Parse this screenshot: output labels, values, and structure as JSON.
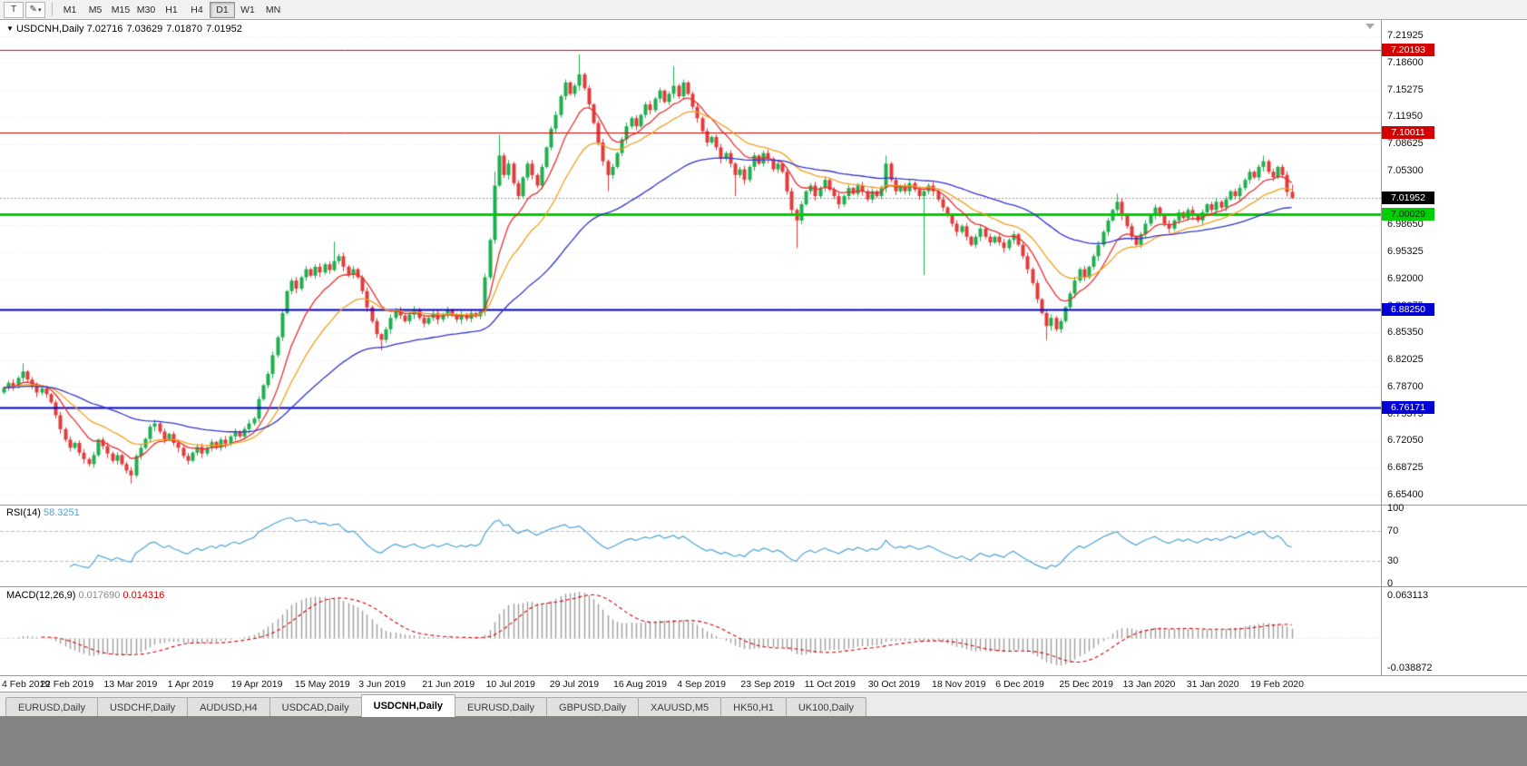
{
  "toolbar": {
    "template_button_label": "T",
    "draw_button_icon": "✎",
    "draw_button_chevron": "▾",
    "timeframes": [
      "M1",
      "M5",
      "M15",
      "M30",
      "H1",
      "H4",
      "D1",
      "W1",
      "MN"
    ],
    "active_timeframe": "D1"
  },
  "info_bar": {
    "collapse_icon": "▼",
    "symbol": "USDCNH,Daily",
    "open": "7.02716",
    "high": "7.03629",
    "low": "7.01870",
    "close": "7.01952"
  },
  "tabs": {
    "items": [
      "EURUSD,Daily",
      "USDCHF,Daily",
      "AUDUSD,H4",
      "USDCAD,Daily",
      "USDCNH,Daily",
      "EURUSD,Daily",
      "GBPUSD,Daily",
      "XAUUSD,M5",
      "HK50,H1",
      "UK100,Daily"
    ],
    "active": "USDCNH,Daily",
    "active_index": 4
  },
  "chart_data": {
    "type": "candlestick",
    "symbol": "USDCNH",
    "timeframe": "Daily",
    "x_axis": {
      "labels": [
        "4 Feb 2019",
        "22 Feb 2019",
        "13 Mar 2019",
        "1 Apr 2019",
        "19 Apr 2019",
        "15 May 2019",
        "3 Jun 2019",
        "21 Jun 2019",
        "10 Jul 2019",
        "29 Jul 2019",
        "16 Aug 2019",
        "4 Sep 2019",
        "23 Sep 2019",
        "11 Oct 2019",
        "30 Oct 2019",
        "18 Nov 2019",
        "6 Dec 2019",
        "25 Dec 2019",
        "13 Jan 2020",
        "31 Jan 2020",
        "19 Feb 2020"
      ],
      "label_every_n_candles": 13.5
    },
    "y_axis": {
      "ticks": [
        "7.21925",
        "7.18600",
        "7.15275",
        "7.11950",
        "7.08625",
        "7.05300",
        "7.01975",
        "6.98650",
        "6.95325",
        "6.92000",
        "6.88675",
        "6.85350",
        "6.82025",
        "6.78700",
        "6.75375",
        "6.72050",
        "6.68725",
        "6.65400"
      ],
      "top_price": 7.239,
      "bottom_price": 6.642
    },
    "candles": {
      "up_color": "#1fae4e",
      "down_color": "#e23b3b",
      "first_open": 6.78,
      "closes": [
        6.786,
        6.792,
        6.788,
        6.798,
        6.806,
        6.796,
        6.788,
        6.78,
        6.785,
        6.778,
        6.768,
        6.752,
        6.735,
        6.722,
        6.712,
        6.718,
        6.706,
        6.698,
        6.692,
        6.703,
        6.722,
        6.714,
        6.705,
        6.696,
        6.703,
        6.692,
        6.684,
        6.678,
        6.702,
        6.712,
        6.723,
        6.738,
        6.742,
        6.732,
        6.722,
        6.729,
        6.718,
        6.712,
        6.702,
        6.696,
        6.706,
        6.713,
        6.705,
        6.712,
        6.719,
        6.712,
        6.722,
        6.717,
        6.726,
        6.732,
        6.726,
        6.735,
        6.742,
        6.748,
        6.772,
        6.789,
        6.803,
        6.826,
        6.848,
        6.878,
        6.905,
        6.918,
        6.908,
        6.922,
        6.932,
        6.924,
        6.935,
        6.928,
        6.938,
        6.931,
        6.942,
        6.948,
        6.935,
        6.925,
        6.932,
        6.922,
        6.905,
        6.885,
        6.868,
        6.852,
        6.845,
        6.858,
        6.872,
        6.882,
        6.875,
        6.868,
        6.876,
        6.882,
        6.872,
        6.865,
        6.872,
        6.878,
        6.87,
        6.876,
        6.882,
        6.875,
        6.87,
        6.876,
        6.871,
        6.878,
        6.874,
        6.88,
        6.922,
        6.968,
        7.035,
        7.072,
        7.048,
        7.062,
        7.038,
        7.022,
        7.045,
        7.062,
        7.048,
        7.035,
        7.058,
        7.082,
        7.105,
        7.122,
        7.145,
        7.162,
        7.148,
        7.158,
        7.172,
        7.155,
        7.135,
        7.112,
        7.088,
        7.065,
        7.048,
        7.058,
        7.075,
        7.092,
        7.108,
        7.118,
        7.108,
        7.122,
        7.135,
        7.128,
        7.142,
        7.152,
        7.138,
        7.148,
        7.158,
        7.145,
        7.162,
        7.148,
        7.132,
        7.118,
        7.102,
        7.088,
        7.095,
        7.082,
        7.068,
        7.075,
        7.062,
        7.048,
        7.055,
        7.042,
        7.058,
        7.072,
        7.062,
        7.075,
        7.068,
        7.055,
        7.062,
        7.052,
        7.028,
        7.005,
        6.992,
        7.012,
        7.028,
        7.035,
        7.022,
        7.032,
        7.042,
        7.03,
        7.022,
        7.012,
        7.022,
        7.032,
        7.025,
        7.035,
        7.028,
        7.018,
        7.028,
        7.022,
        7.032,
        7.062,
        7.042,
        7.028,
        7.035,
        7.028,
        7.038,
        7.03,
        7.022,
        7.028,
        7.035,
        7.028,
        7.018,
        7.008,
        6.998,
        6.988,
        6.978,
        6.985,
        6.972,
        6.962,
        6.972,
        6.982,
        6.972,
        6.965,
        6.972,
        6.965,
        6.958,
        6.968,
        6.975,
        6.962,
        6.948,
        6.932,
        6.915,
        6.895,
        6.878,
        6.862,
        6.872,
        6.858,
        6.868,
        6.885,
        6.902,
        6.918,
        6.932,
        6.922,
        6.935,
        6.948,
        6.962,
        6.978,
        6.992,
        7.005,
        7.015,
        6.998,
        6.985,
        6.972,
        6.962,
        6.975,
        6.988,
        6.998,
        7.008,
        6.998,
        6.988,
        6.982,
        6.992,
        7.002,
        6.995,
        7.005,
        6.998,
        6.992,
        7.002,
        7.012,
        7.005,
        7.015,
        7.008,
        7.018,
        7.028,
        7.022,
        7.032,
        7.042,
        7.052,
        7.045,
        7.058,
        7.065,
        7.052,
        7.045,
        7.058,
        7.048,
        7.02716,
        7.01952
      ],
      "wick_overrides": {
        "4": [
          6.816,
          null
        ],
        "27": [
          null,
          6.668
        ],
        "70": [
          6.966,
          null
        ],
        "80": [
          null,
          6.832
        ],
        "104": [
          7.052,
          null
        ],
        "105": [
          7.098,
          null
        ],
        "122": [
          7.1965,
          null
        ],
        "128": [
          null,
          7.028
        ],
        "142": [
          7.182,
          null
        ],
        "155": [
          null,
          7.022
        ],
        "168": [
          null,
          6.958
        ],
        "187": [
          7.072,
          null
        ],
        "195": [
          null,
          6.925
        ],
        "221": [
          null,
          6.845
        ],
        "236": [
          7.025,
          null
        ],
        "267": [
          7.072,
          null
        ],
        "273": [
          7.03629,
          7.0187
        ]
      }
    },
    "moving_averages": [
      {
        "period": 10,
        "color": "#e62e2e"
      },
      {
        "period": 21,
        "color": "#f0a01e"
      },
      {
        "period": 55,
        "color": "#3333cc"
      }
    ],
    "levels": [
      {
        "price": 7.20193,
        "label": "7.20193",
        "color": "#d40000",
        "width": 1,
        "badge_text_color": "#ffffff"
      },
      {
        "price": 7.10011,
        "label": "7.10011",
        "color": "#d40000",
        "width": 1,
        "badge_text_color": "#ffffff"
      },
      {
        "price": 7.00029,
        "label": "7.00029",
        "color": "#00ce00",
        "width": 3,
        "badge_text_color": "#003300"
      },
      {
        "price": 6.8825,
        "label": "6.88250",
        "color": "#0000d4",
        "width": 2,
        "badge_text_color": "#ffffff"
      },
      {
        "price": 6.76171,
        "label": "6.76171",
        "color": "#0000d4",
        "width": 2,
        "badge_text_color": "#ffffff"
      }
    ],
    "current_price": {
      "value": 7.01952,
      "label": "7.01952",
      "badge_bg": "#000000"
    },
    "rsi": {
      "label": "RSI(14)",
      "value": "58.3251",
      "period": 14,
      "line_color": "#4da3d6",
      "axis_ticks": [
        100,
        70,
        30,
        0
      ],
      "level_lines": [
        70,
        30
      ]
    },
    "macd": {
      "label": "MACD(12,26,9)",
      "value_main": "0.017690",
      "value_signal": "0.014316",
      "fast": 12,
      "slow": 26,
      "signal": 9,
      "histogram_color": "#9e9e9e",
      "signal_color": "#d40000",
      "axis_top_label": "0.063113",
      "axis_bottom_label": "-0.038872"
    }
  }
}
